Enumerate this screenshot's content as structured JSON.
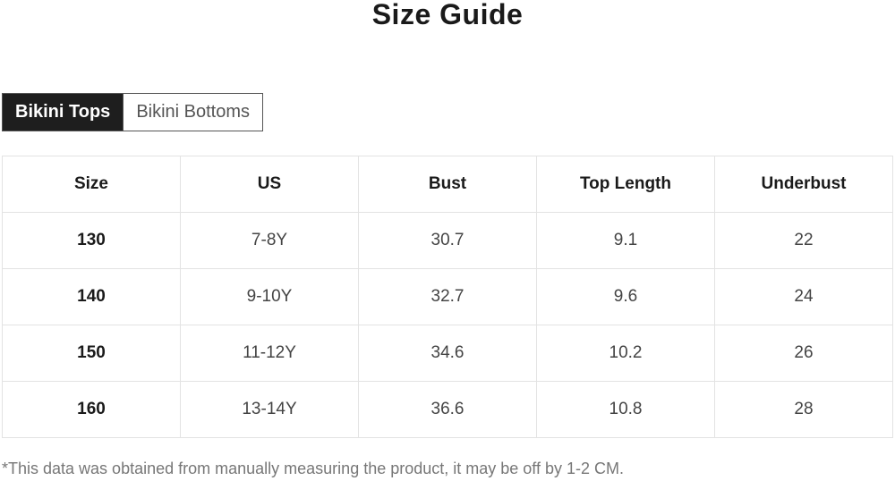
{
  "title": "Size Guide",
  "tabs": [
    {
      "label": "Bikini Tops",
      "active": true
    },
    {
      "label": "Bikini Bottoms",
      "active": false
    }
  ],
  "table": {
    "headers": [
      "Size",
      "US",
      "Bust",
      "Top Length",
      "Underbust"
    ],
    "rows": [
      [
        "130",
        "7-8Y",
        "30.7",
        "9.1",
        "22"
      ],
      [
        "140",
        "9-10Y",
        "32.7",
        "9.6",
        "24"
      ],
      [
        "150",
        "11-12Y",
        "34.6",
        "10.2",
        "26"
      ],
      [
        "160",
        "13-14Y",
        "36.6",
        "10.8",
        "28"
      ]
    ]
  },
  "note": "*This data was obtained from manually measuring the product, it may be off by 1-2 CM."
}
